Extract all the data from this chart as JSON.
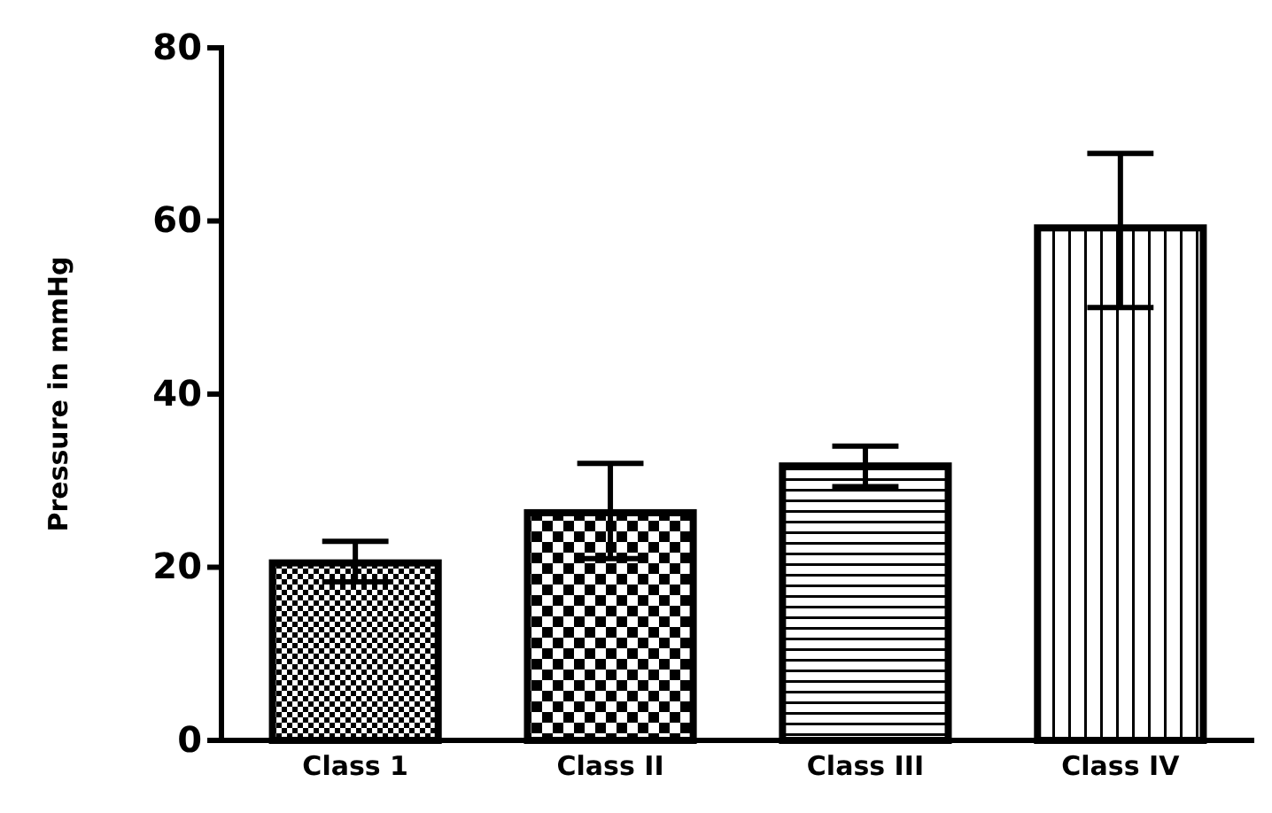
{
  "chart_data": {
    "type": "bar",
    "ylabel": "Pressure in mmHg",
    "categories": [
      "Class 1",
      "Class II",
      "Class III",
      "Class IV"
    ],
    "values": [
      20.5,
      26.3,
      31.7,
      59.2
    ],
    "errors": [
      [
        18.3,
        23
      ],
      [
        21,
        32
      ],
      [
        29.3,
        34
      ],
      [
        50,
        67.8
      ]
    ],
    "color": "#000000",
    "ylim": [
      0,
      80
    ],
    "yticks": [
      0,
      20,
      40,
      60,
      80
    ],
    "grid": false
  }
}
